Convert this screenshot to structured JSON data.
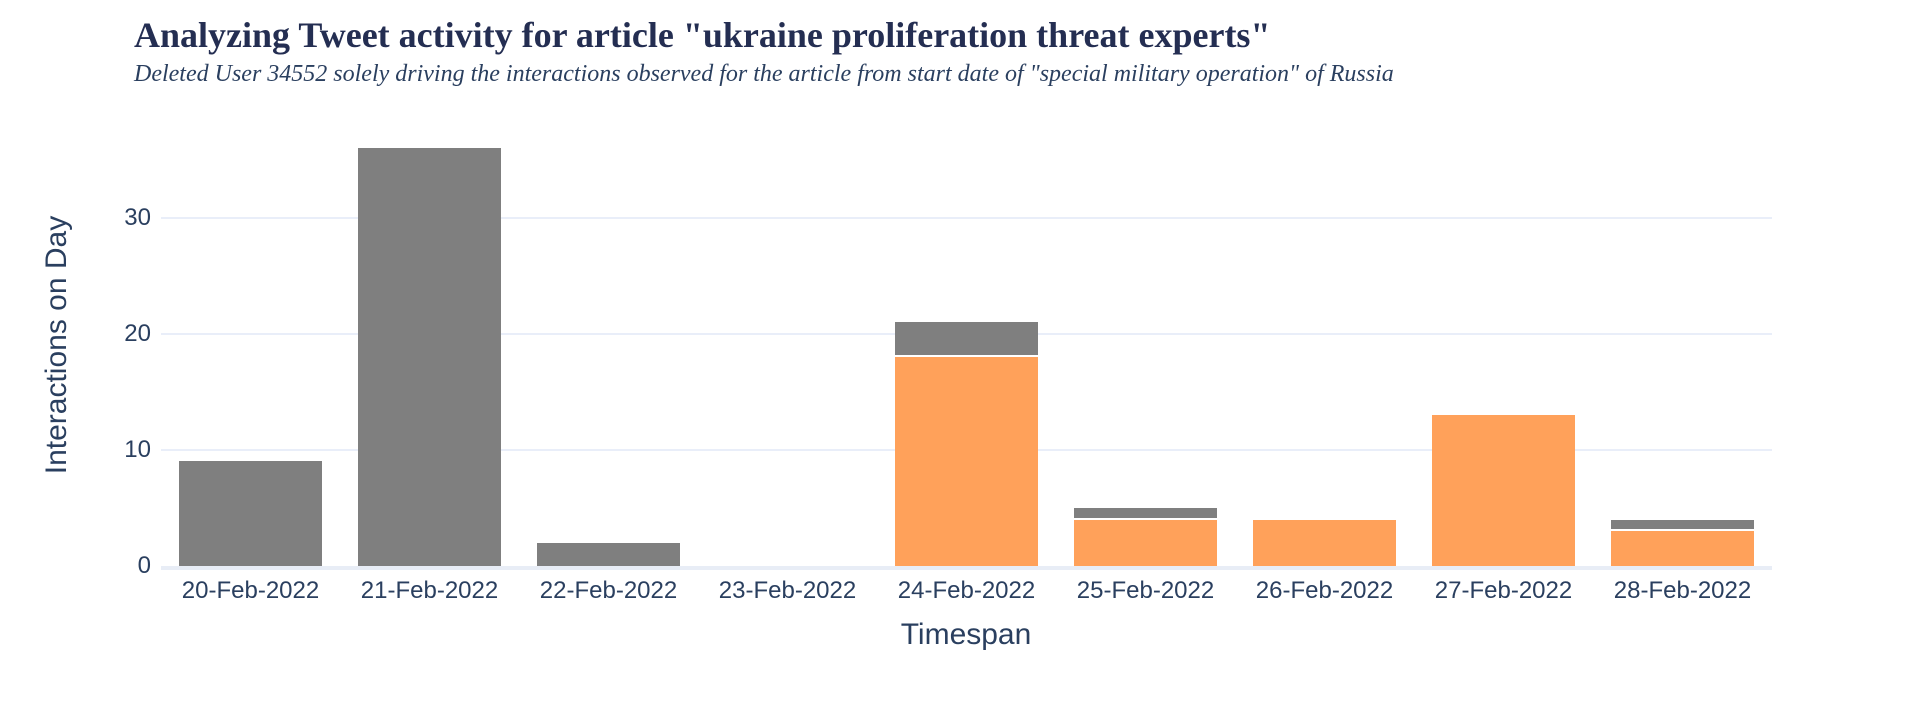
{
  "chart_data": {
    "type": "bar",
    "stacked": true,
    "title": "Analyzing Tweet activity for article \"ukraine proliferation threat experts\"",
    "subtitle": "Deleted User 34552 solely driving the interactions observed for the article from start date of \"special military operation\" of Russia",
    "xlabel": "Timespan",
    "ylabel": "Interactions on Day",
    "categories": [
      "20-Feb-2022",
      "21-Feb-2022",
      "22-Feb-2022",
      "23-Feb-2022",
      "24-Feb-2022",
      "25-Feb-2022",
      "26-Feb-2022",
      "27-Feb-2022",
      "28-Feb-2022"
    ],
    "series": [
      {
        "name": "orange-segment",
        "color": "#ffa15a",
        "values": [
          0,
          0,
          0,
          0,
          18,
          4,
          4,
          13,
          3
        ]
      },
      {
        "name": "gray-segment",
        "color": "#7f7f7f",
        "values": [
          9,
          36,
          2,
          0,
          3,
          1,
          0,
          0,
          1
        ]
      }
    ],
    "stack_totals": [
      9,
      36,
      2,
      0,
      21,
      5,
      4,
      13,
      4
    ],
    "ylim": [
      0,
      39
    ],
    "yticks": [
      0,
      10,
      20,
      30
    ],
    "grid": true,
    "legend_position": "none"
  },
  "style": {
    "text_color": "#2a3f5f",
    "title_color": "#242e52",
    "grid_color": "#e9eef9",
    "axisline_color": "#e8edf6",
    "background": "#ffffff",
    "bar_gray": "#7f7f7f",
    "bar_orange": "#ffa15a",
    "segment_separator": "#ffffff"
  }
}
